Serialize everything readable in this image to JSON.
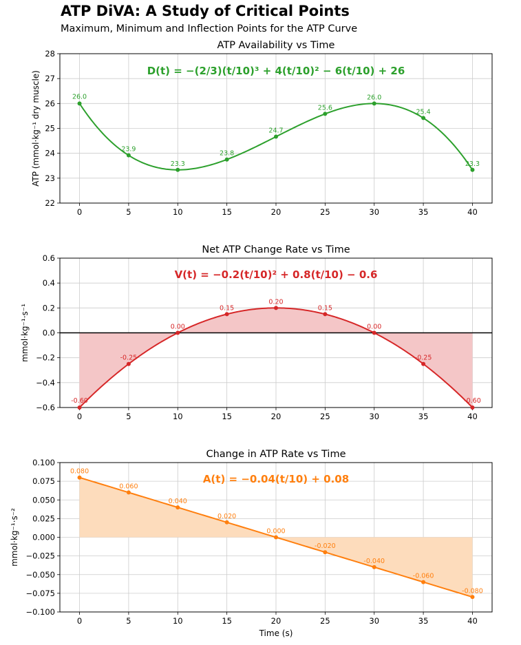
{
  "header": {
    "title": "ATP DiVA: A Study of Critical Points",
    "subtitle": "Maximum, Minimum and Inflection Points for the ATP Curve"
  },
  "chart_data": [
    {
      "type": "line",
      "title": "ATP Availability vs Time",
      "equation": "D(t) = −(2/3)(t/10)³ + 4(t/10)² − 6(t/10) + 26",
      "xlabel": "",
      "ylabel": "ATP (mmol·kg⁻¹ dry muscle)",
      "color": "#2ca02c",
      "fill": false,
      "xlim": [
        -2,
        42
      ],
      "ylim": [
        22,
        28
      ],
      "xticks": [
        0,
        5,
        10,
        15,
        20,
        25,
        30,
        35,
        40
      ],
      "yticks": [
        22,
        23,
        24,
        25,
        26,
        27,
        28
      ],
      "ytick_labels": [
        "22",
        "23",
        "24",
        "25",
        "26",
        "27",
        "28"
      ],
      "x": [
        0,
        5,
        10,
        15,
        20,
        25,
        30,
        35,
        40
      ],
      "y": [
        26.0,
        23.917,
        23.333,
        23.75,
        24.667,
        25.583,
        26.0,
        25.417,
        23.333
      ],
      "point_labels": [
        "26.0",
        "23.9",
        "23.3",
        "23.8",
        "24.7",
        "25.6",
        "26.0",
        "25.4",
        "23.3"
      ],
      "coefficients": [
        -0.6667,
        4,
        -6,
        26
      ]
    },
    {
      "type": "line",
      "title": "Net ATP Change Rate vs Time",
      "equation": "V(t) = −0.2(t/10)² + 0.8(t/10) − 0.6",
      "xlabel": "",
      "ylabel": "mmol·kg⁻¹·s⁻¹",
      "color": "#d62728",
      "fill": true,
      "fill_color": "#f4c6c7",
      "zero_line": true,
      "xlim": [
        -2,
        42
      ],
      "ylim": [
        -0.6,
        0.6
      ],
      "xticks": [
        0,
        5,
        10,
        15,
        20,
        25,
        30,
        35,
        40
      ],
      "yticks": [
        -0.6,
        -0.4,
        -0.2,
        0.0,
        0.2,
        0.4,
        0.6
      ],
      "ytick_labels": [
        "−0.6",
        "−0.4",
        "−0.2",
        "0.0",
        "0.2",
        "0.4",
        "0.6"
      ],
      "x": [
        0,
        5,
        10,
        15,
        20,
        25,
        30,
        35,
        40
      ],
      "y": [
        -0.6,
        -0.25,
        0.0,
        0.15,
        0.2,
        0.15,
        0.0,
        -0.25,
        -0.6
      ],
      "point_labels": [
        "-0.60",
        "-0.25",
        "0.00",
        "0.15",
        "0.20",
        "0.15",
        "0.00",
        "-0.25",
        "-0.60"
      ],
      "coefficients": [
        0,
        -0.2,
        0.8,
        -0.6
      ]
    },
    {
      "type": "line",
      "title": "Change in ATP Rate vs Time",
      "equation": "A(t) = −0.04(t/10) + 0.08",
      "xlabel": "Time (s)",
      "ylabel": "mmol·kg⁻¹·s⁻²",
      "color": "#ff7f0e",
      "fill": true,
      "fill_color": "#fddcbc",
      "xlim": [
        -2,
        42
      ],
      "ylim": [
        -0.1,
        0.1
      ],
      "xticks": [
        0,
        5,
        10,
        15,
        20,
        25,
        30,
        35,
        40
      ],
      "yticks": [
        -0.1,
        -0.075,
        -0.05,
        -0.025,
        0.0,
        0.025,
        0.05,
        0.075,
        0.1
      ],
      "ytick_labels": [
        "−0.100",
        "−0.075",
        "−0.050",
        "−0.025",
        "0.000",
        "0.025",
        "0.050",
        "0.075",
        "0.100"
      ],
      "x": [
        0,
        5,
        10,
        15,
        20,
        25,
        30,
        35,
        40
      ],
      "y": [
        0.08,
        0.06,
        0.04,
        0.02,
        0.0,
        -0.02,
        -0.04,
        -0.06,
        -0.08
      ],
      "point_labels": [
        "0.080",
        "0.060",
        "0.040",
        "0.020",
        "0.000",
        "-0.020",
        "-0.040",
        "-0.060",
        "-0.080"
      ],
      "coefficients": [
        0,
        0,
        -0.04,
        0.08
      ]
    }
  ]
}
